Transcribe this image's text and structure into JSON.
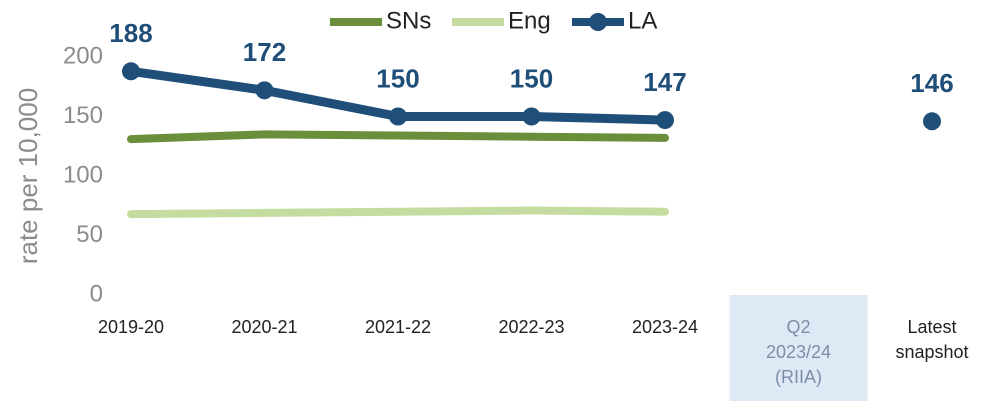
{
  "chart_data": {
    "type": "line",
    "y_axis_label": "rate per 10,000",
    "categories": [
      "2019-20",
      "2020-21",
      "2021-22",
      "2022-23",
      "2023-24",
      "Q2\n2023/24\n(RIIA)",
      "Latest\nsnapshot"
    ],
    "series": [
      {
        "name": "SNs",
        "color": "#6b8e3a",
        "values": [
          131,
          135,
          134,
          133,
          132,
          null,
          null
        ]
      },
      {
        "name": "Eng",
        "color": "#c5dca0",
        "values": [
          68,
          69,
          70,
          71,
          70,
          null,
          null
        ]
      },
      {
        "name": "LA",
        "color": "#1f4e79",
        "values": [
          188,
          172,
          150,
          150,
          147,
          null,
          146
        ],
        "markers": true,
        "data_labels": true
      }
    ],
    "highlight_category": 5,
    "ylim": [
      0,
      200
    ],
    "yticks": [
      0,
      50,
      100,
      150,
      200
    ],
    "grid": false,
    "legend": "top"
  }
}
